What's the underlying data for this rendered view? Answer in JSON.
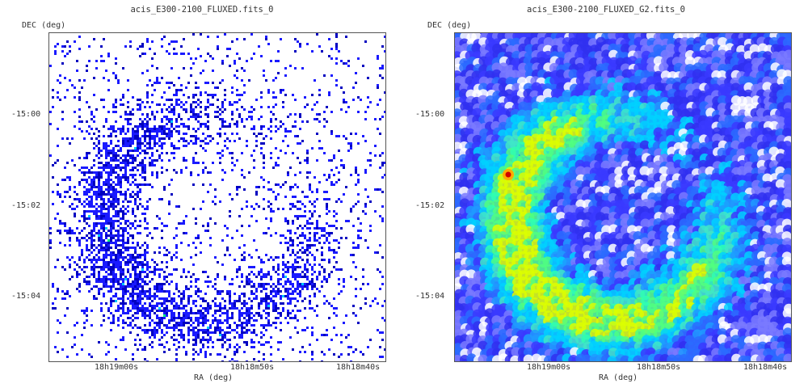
{
  "chart_data": [
    {
      "type": "heatmap",
      "title": "acis_E300-2100_FLUXED.fits_0",
      "xlabel": "RA (deg)",
      "ylabel": "DEC (deg)",
      "x_ticks": [
        "18h19m00s",
        "18h18m50s",
        "18h18m40s"
      ],
      "y_ticks": [
        "-15:00",
        "-15:02",
        "-15:04"
      ],
      "rendering": "raw counts (sparse pixels)",
      "colors": [
        "#ffffff",
        "#1a1aff",
        "#0000c0",
        "#00c8ff",
        "#00ff80"
      ],
      "features": {
        "shell": "incomplete ring of emission, brightest on west/south arc",
        "point_source": "none distinct"
      }
    },
    {
      "type": "heatmap",
      "title": "acis_E300-2100_FLUXED_G2.fits_0",
      "xlabel": "RA (deg)",
      "ylabel": "DEC (deg)",
      "x_ticks": [
        "18h19m00s",
        "18h18m50s",
        "18h18m40s"
      ],
      "y_ticks": [
        "-15:00",
        "-15:02",
        "-15:04"
      ],
      "rendering": "gaussian smoothed (sigma=2 px)",
      "colors": [
        "#ffffff",
        "#3c3cff",
        "#00d2ff",
        "#50ff80",
        "#dcff00",
        "#ffaa00",
        "#d00000"
      ],
      "features": {
        "shell": "incomplete ring of emission, brightest on east rim and south arc",
        "point_source": "bright compact source on east edge of shell"
      }
    }
  ]
}
